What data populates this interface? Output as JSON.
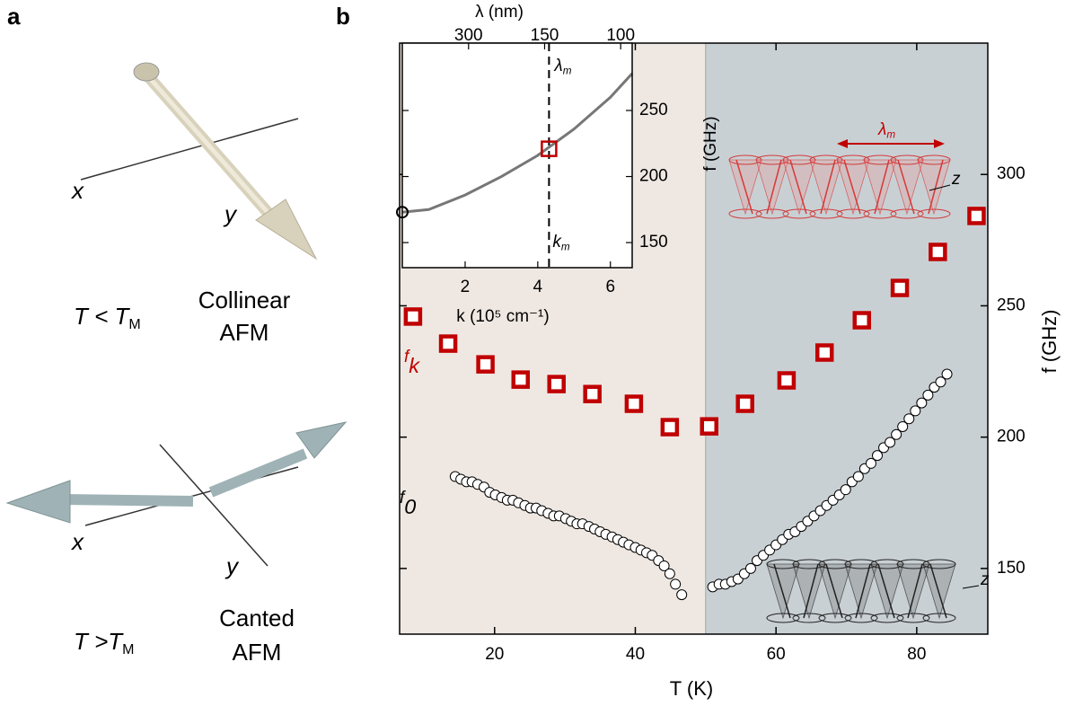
{
  "panel_a": {
    "label": "a",
    "collinear": {
      "x": "x",
      "y": "y",
      "condition": {
        "main": "T < T",
        "sub": "M"
      },
      "state": [
        "Collinear",
        "AFM"
      ]
    },
    "canted": {
      "x": "x",
      "y": "y",
      "condition": {
        "main": "T >T",
        "sub": "M"
      },
      "state": [
        "Canted",
        "AFM"
      ]
    }
  },
  "chart_data": {
    "type": "scatter",
    "panel_label": "b",
    "xlabel": "T (K)",
    "ylabel": "f (GHz)",
    "xlim": [
      6.5,
      90.1
    ],
    "ylim": [
      125,
      350
    ],
    "xticks": [
      20,
      40,
      60,
      80
    ],
    "yticks": [
      150,
      200,
      250,
      300
    ],
    "region_boundary": 50,
    "region_colors": [
      "#efe8e2",
      "#c9d0d4"
    ],
    "annotations": [
      {
        "main": "f",
        "sub": "k",
        "color": "#c00000"
      },
      {
        "main": "f",
        "sub": "0",
        "color": "#000000"
      }
    ],
    "series": [
      {
        "marker": "square",
        "color": "#c00000",
        "x": [
          8.4,
          13.4,
          18.7,
          23.7,
          28.8,
          33.9,
          39.8,
          44.9,
          50.5,
          55.6,
          61.5,
          66.9,
          72.2,
          77.6,
          83.0,
          88.5
        ],
        "values": [
          245.9,
          235.6,
          227.7,
          221.9,
          220.2,
          216.4,
          212.7,
          203.8,
          204.1,
          212.7,
          221.6,
          232.2,
          244.5,
          256.8,
          270.5,
          284.2
        ]
      },
      {
        "marker": "circle",
        "color": "#000000",
        "x": [
          14.4,
          15.2,
          16.0,
          16.8,
          17.6,
          18.5,
          19.3,
          20.1,
          21.0,
          21.8,
          22.6,
          23.4,
          24.3,
          25.1,
          25.9,
          26.7,
          27.6,
          28.4,
          29.2,
          30.1,
          30.9,
          31.7,
          32.5,
          33.4,
          34.2,
          35.0,
          35.8,
          36.7,
          37.5,
          38.3,
          39.1,
          40.0,
          40.8,
          41.6,
          42.4,
          43.3,
          44.1,
          44.9,
          45.7,
          46.6,
          51.0,
          51.9,
          52.8,
          53.7,
          54.6,
          55.5,
          56.4,
          57.3,
          58.2,
          59.1,
          60.0,
          60.9,
          61.8,
          62.7,
          63.6,
          64.5,
          65.4,
          66.3,
          67.2,
          68.1,
          69.0,
          69.9,
          70.8,
          71.7,
          72.6,
          73.5,
          74.4,
          75.3,
          76.2,
          77.1,
          78.0,
          78.9,
          79.8,
          80.7,
          81.6,
          82.5,
          83.4,
          84.3
        ],
        "values": [
          185,
          184,
          183,
          183,
          182,
          181,
          179,
          178,
          177,
          176,
          176,
          175,
          174,
          173,
          173,
          172,
          171,
          170,
          170,
          169,
          168,
          167,
          167,
          166,
          165,
          164,
          163,
          162,
          161,
          160,
          159,
          158,
          157,
          156,
          155,
          153,
          151,
          148,
          144,
          140,
          143,
          144,
          144,
          145,
          146,
          148,
          150,
          153,
          155,
          157,
          159,
          161,
          163,
          164,
          166,
          168,
          170,
          172,
          174,
          176,
          178,
          180,
          183,
          185,
          188,
          190,
          193,
          196,
          198,
          201,
          204,
          207,
          210,
          213,
          216,
          219,
          221,
          224
        ]
      }
    ],
    "spin_texture": {
      "main": "λ",
      "sub": "m",
      "axis": "z"
    },
    "inset": {
      "type": "line",
      "xlabel": "k (10⁵ cm⁻¹)",
      "ylabel": "f (GHz)",
      "x2label": "λ (nm)",
      "xlim": [
        0.27,
        6.6
      ],
      "ylim": [
        131,
        301
      ],
      "xticks": [
        2,
        4,
        6
      ],
      "yticks": [
        150,
        200,
        250
      ],
      "x2ticks": [
        300,
        150,
        100
      ],
      "series": [
        {
          "color": "#777777",
          "x": [
            0.27,
            1,
            2,
            3,
            4,
            5,
            6,
            6.6
          ],
          "values": [
            173,
            175,
            186,
            200,
            216,
            236,
            260,
            278
          ]
        }
      ],
      "square": {
        "x": 4.31,
        "value": 221,
        "color": "#c00000"
      },
      "circle": {
        "x": 0.27,
        "value": 173
      },
      "lambda_m": {
        "main": "λ",
        "sub": "m"
      },
      "k_m": {
        "main": "k",
        "sub": "m"
      }
    }
  }
}
